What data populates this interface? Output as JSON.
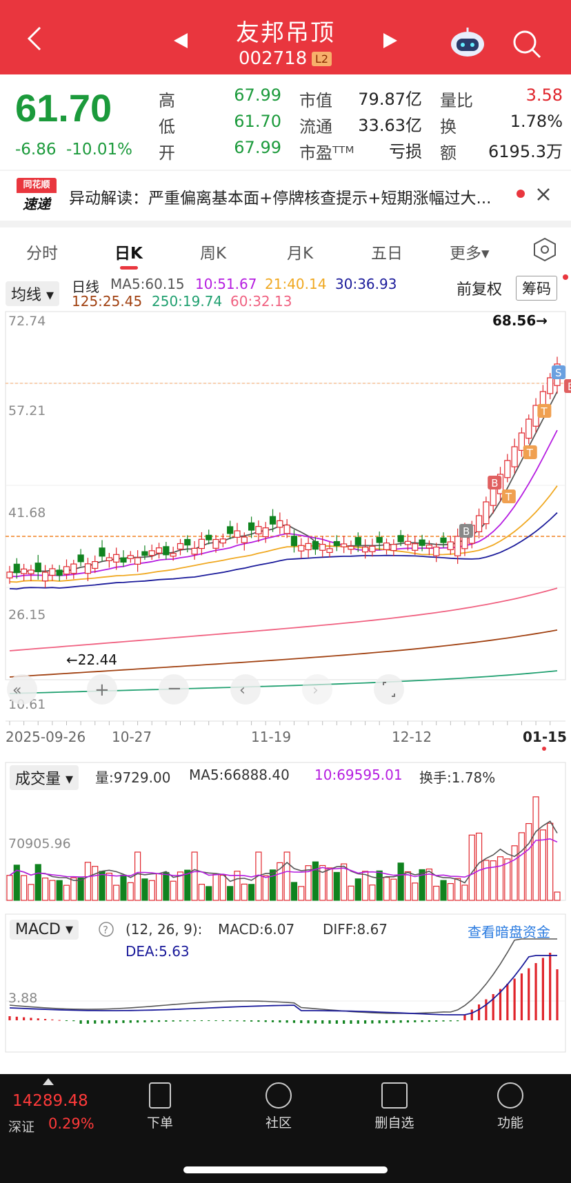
{
  "header": {
    "back_icon": "back-arrow-icon",
    "title": "友邦吊顶",
    "code": "002718",
    "level_badge": "L2",
    "prev_icon": "left-triangle-icon",
    "next_icon": "right-triangle-icon",
    "robot_icon": "robot-icon",
    "search_icon": "search-icon"
  },
  "quote": {
    "price": "61.70",
    "change": "-6.86",
    "change_pct": "-10.01%",
    "rows": [
      {
        "l1": "高",
        "v1": "67.99",
        "l2": "市值",
        "v2": "79.87亿",
        "l3": "量比",
        "v3": "3.58"
      },
      {
        "l1": "低",
        "v1": "61.70",
        "l2": "流通",
        "v2": "33.63亿",
        "l3": "换",
        "v3": "1.78%"
      },
      {
        "l1": "开",
        "v1": "67.99",
        "l2": "市盈ᵀᵀᴹ",
        "v2": "亏损",
        "l3": "额",
        "v3": "6195.3万"
      }
    ]
  },
  "news": {
    "logo_top": "同花顺",
    "logo_bottom": "速递",
    "text": "异动解读：严重偏离基本面+停牌核查提示+短期涨幅过大...",
    "close_icon": "close-icon"
  },
  "tabs": [
    "分时",
    "日K",
    "周K",
    "月K",
    "五日",
    "更多▾"
  ],
  "active_tab": "日K",
  "kline": {
    "indicator": "均线 ▾",
    "period": "日线",
    "ma5": "MA5:60.15",
    "ma10": "10:51.67",
    "ma21": "21:40.14",
    "ma30": "30:36.93",
    "ma125": "125:25.45",
    "ma250": "250:19.74",
    "ma60": "60:32.13",
    "adjust": "前复权",
    "chips": "筹码",
    "y_labels": [
      "72.74",
      "57.21",
      "41.68",
      "26.15",
      "10.61"
    ],
    "high_marker": "68.56→",
    "low_marker": "←22.44",
    "x_labels": [
      "2025-09-26",
      "10-27",
      "11-19",
      "12-12",
      "01-15"
    ]
  },
  "volume": {
    "indicator": "成交量 ▾",
    "vol": "量:9729.00",
    "ma5": "MA5:66888.40",
    "ma10": "10:69595.01",
    "turnover": "换手:1.78%",
    "y_label": "70905.96"
  },
  "macd": {
    "indicator": "MACD ▾",
    "help_icon": "help-icon",
    "params": "(12, 26, 9):",
    "macd": "MACD:6.07",
    "diff": "DIFF:8.67",
    "dea": "DEA:5.63",
    "link": "查看暗盘资金",
    "y_label": "3.88"
  },
  "colors": {
    "up": "#e0242b",
    "down": "#10831f",
    "ma5": "#555555",
    "ma10": "#b51ce0",
    "ma21": "#f0a820",
    "ma30": "#1a1a9a",
    "ma60": "#f06080",
    "ma125": "#a04010",
    "ma250": "#20a070"
  },
  "bottom": {
    "index_value": "14289.48",
    "index_name": "深证",
    "index_change": "0.29%",
    "items": [
      "下单",
      "社区",
      "删自选",
      "功能"
    ]
  }
}
